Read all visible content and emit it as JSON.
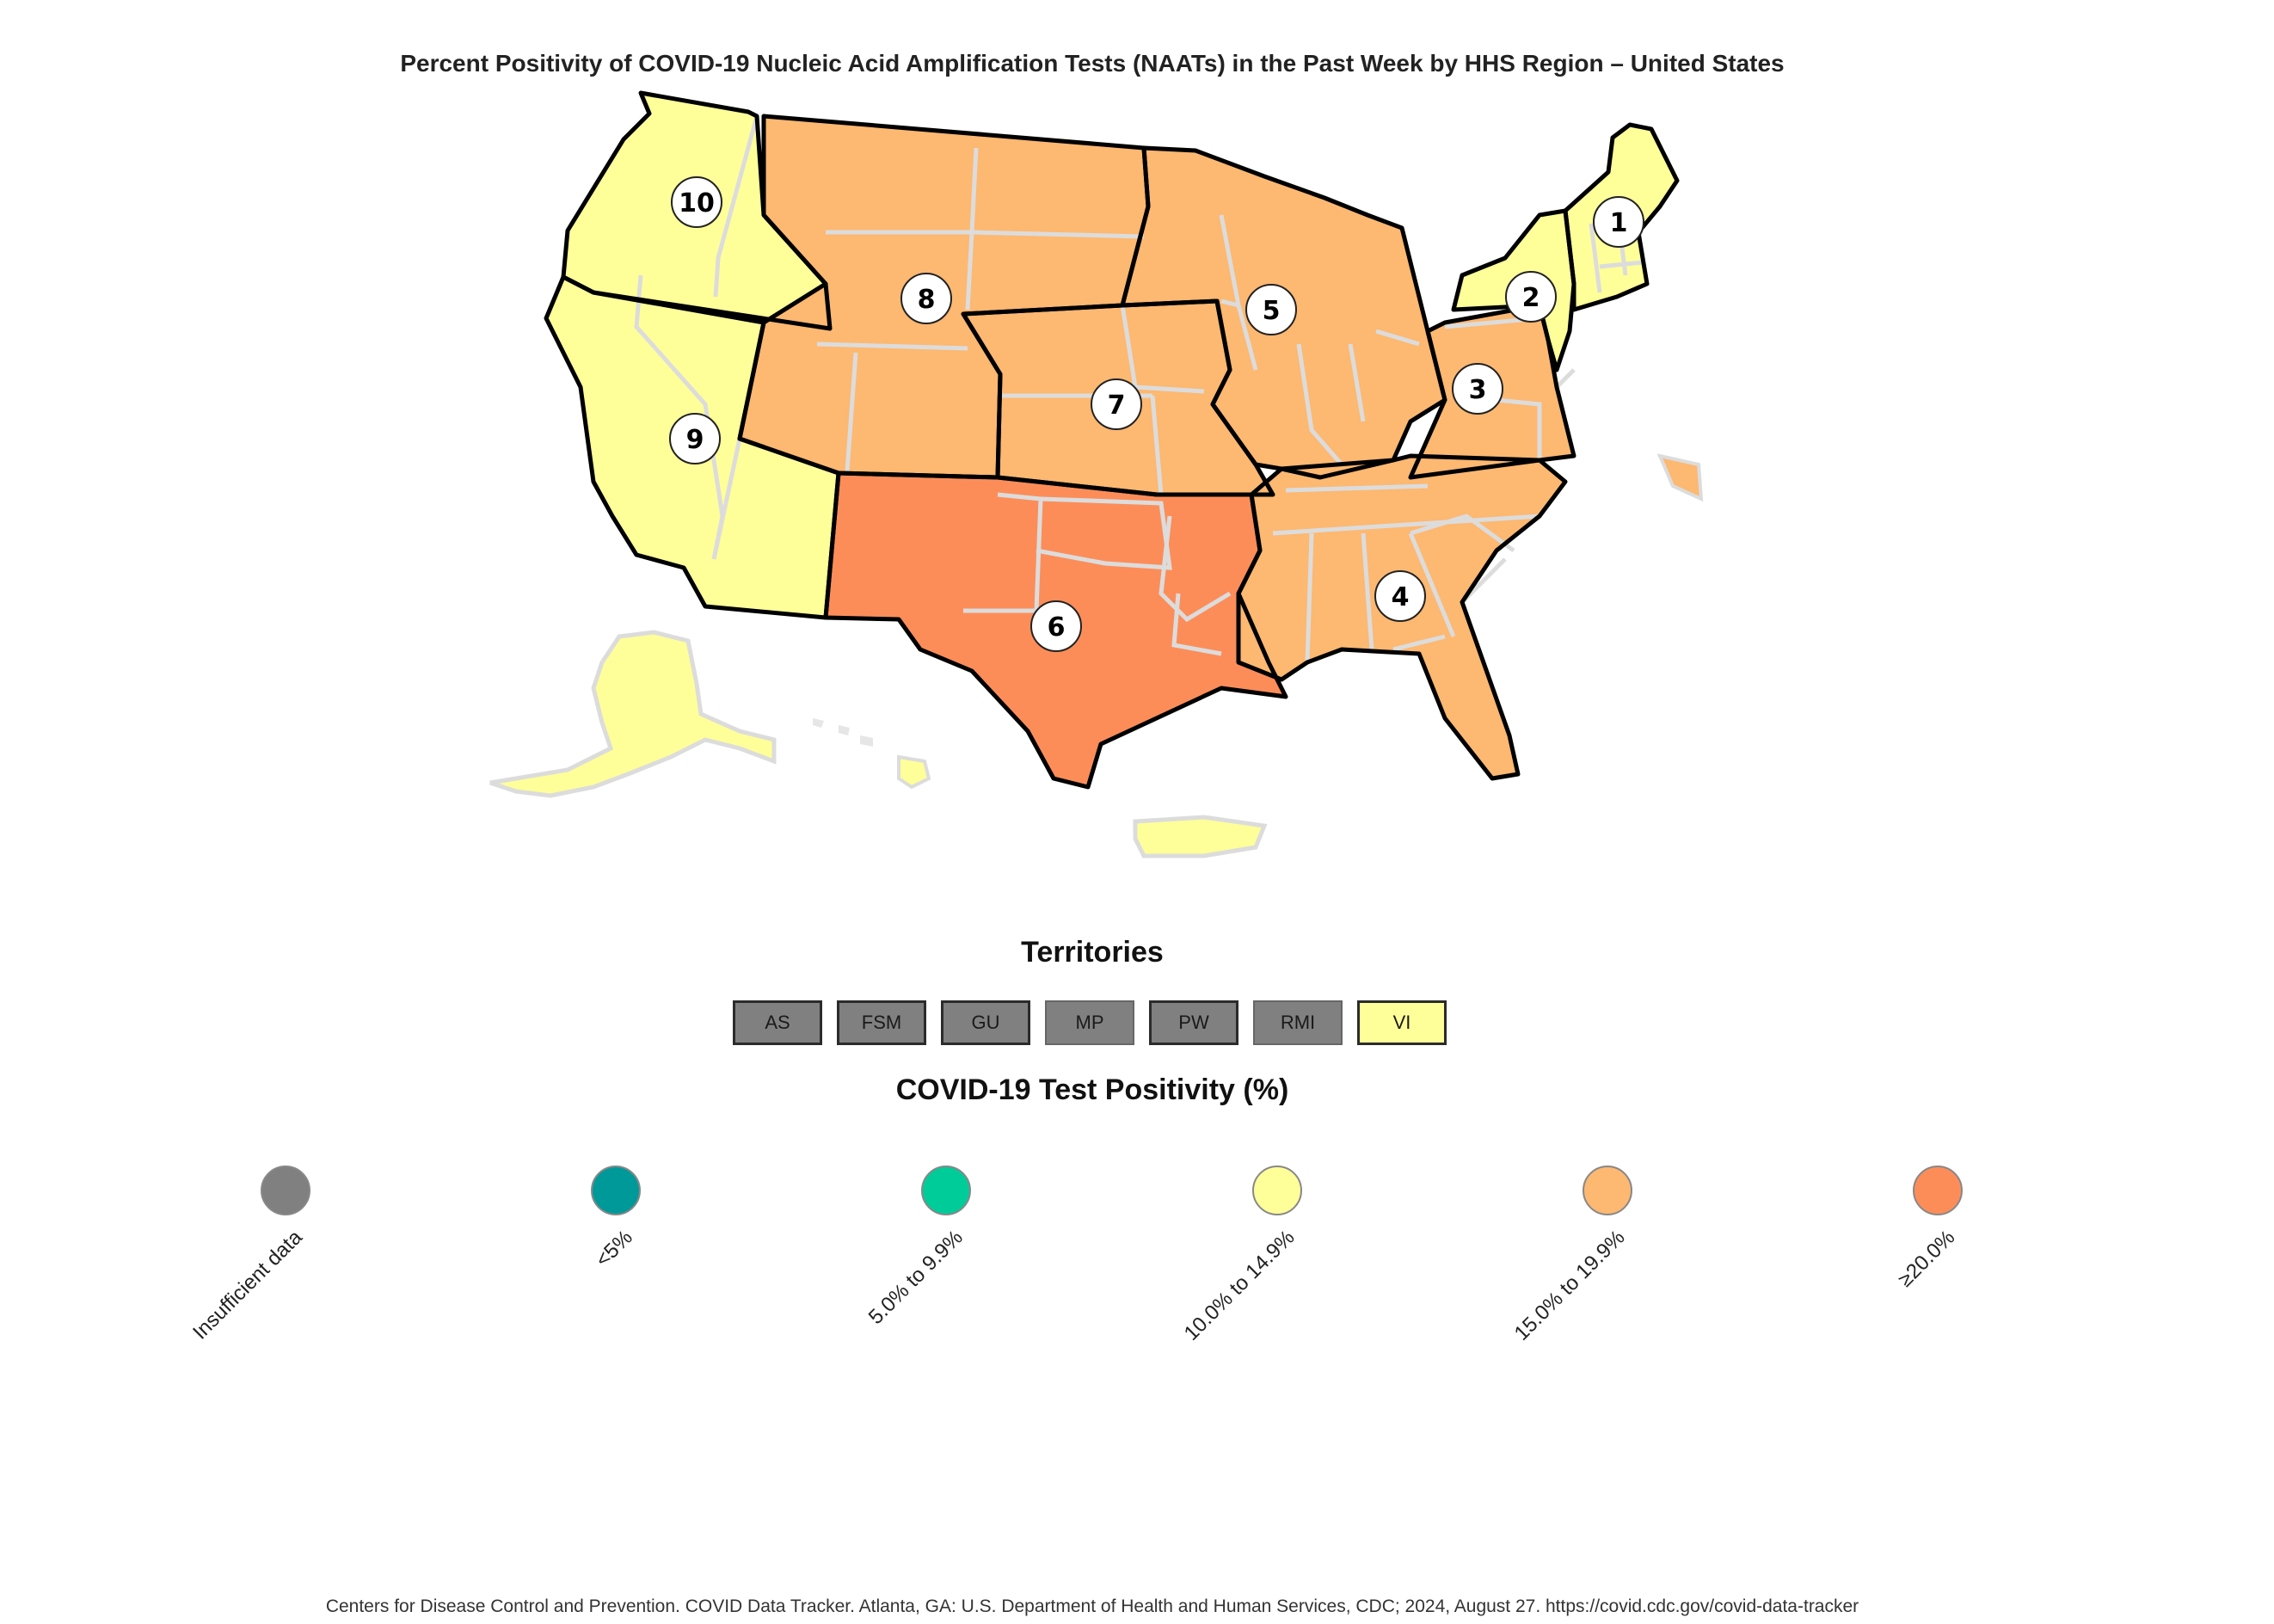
{
  "title": "Percent Positivity of COVID-19 Nucleic Acid Amplification Tests (NAATs) in the Past Week by HHS Region – United States",
  "map": {
    "regions": [
      {
        "label": "1",
        "color": "#ffff99"
      },
      {
        "label": "2",
        "color": "#ffff99"
      },
      {
        "label": "3",
        "color": "#fdb871"
      },
      {
        "label": "4",
        "color": "#fdb871"
      },
      {
        "label": "5",
        "color": "#fdb871"
      },
      {
        "label": "6",
        "color": "#fc8d59"
      },
      {
        "label": "7",
        "color": "#fdb871"
      },
      {
        "label": "8",
        "color": "#fdb871"
      },
      {
        "label": "9",
        "color": "#ffff99"
      },
      {
        "label": "10",
        "color": "#ffff99"
      }
    ],
    "alaska_color": "#ffff99",
    "hawaii_color": "#ffff99",
    "puerto_rico_color": "#ffff99"
  },
  "territories": {
    "heading": "Territories",
    "items": [
      {
        "label": "AS",
        "color": "#808080"
      },
      {
        "label": "FSM",
        "color": "#808080"
      },
      {
        "label": "GU",
        "color": "#808080"
      },
      {
        "label": "MP",
        "color": "#808080"
      },
      {
        "label": "PW",
        "color": "#808080"
      },
      {
        "label": "RMI",
        "color": "#808080"
      },
      {
        "label": "VI",
        "color": "#ffff99"
      }
    ]
  },
  "legend": {
    "heading": "COVID-19 Test Positivity (%)",
    "items": [
      {
        "label": "Insufficient data",
        "color": "#808080"
      },
      {
        "label": "<5%",
        "color": "#009999"
      },
      {
        "label": "5.0% to 9.9%",
        "color": "#00cc99"
      },
      {
        "label": "10.0% to 14.9%",
        "color": "#ffff99"
      },
      {
        "label": "15.0% to 19.9%",
        "color": "#fdb871"
      },
      {
        "label": "≥20.0%",
        "color": "#fc8d59"
      }
    ]
  },
  "citation": "Centers for Disease Control and Prevention. COVID Data Tracker. Atlanta, GA: U.S. Department of Health and Human Services, CDC; 2024, August 27. https://covid.cdc.gov/covid-data-tracker"
}
